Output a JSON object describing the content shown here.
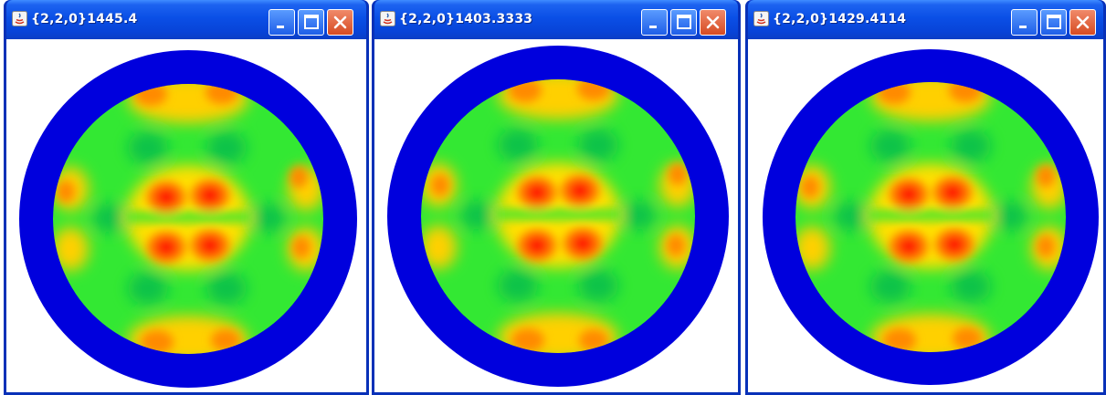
{
  "windows": [
    {
      "title": "{2,2,0}1445.4",
      "buttons": {
        "minimize": "minimize-icon",
        "maximize": "maximize-icon",
        "close": "close-icon"
      }
    },
    {
      "title": "{2,2,0}1403.3333",
      "buttons": {
        "minimize": "minimize-icon",
        "maximize": "maximize-icon",
        "close": "close-icon"
      }
    },
    {
      "title": "{2,2,0}1429.4114",
      "buttons": {
        "minimize": "minimize-icon",
        "maximize": "maximize-icon",
        "close": "close-icon"
      }
    }
  ],
  "colors": {
    "ring": "#0000dd",
    "background": "#33e833",
    "low": "#10c24a",
    "mid": "#ffe000",
    "high": "#ff8a00",
    "peak": "#ff1a00"
  }
}
